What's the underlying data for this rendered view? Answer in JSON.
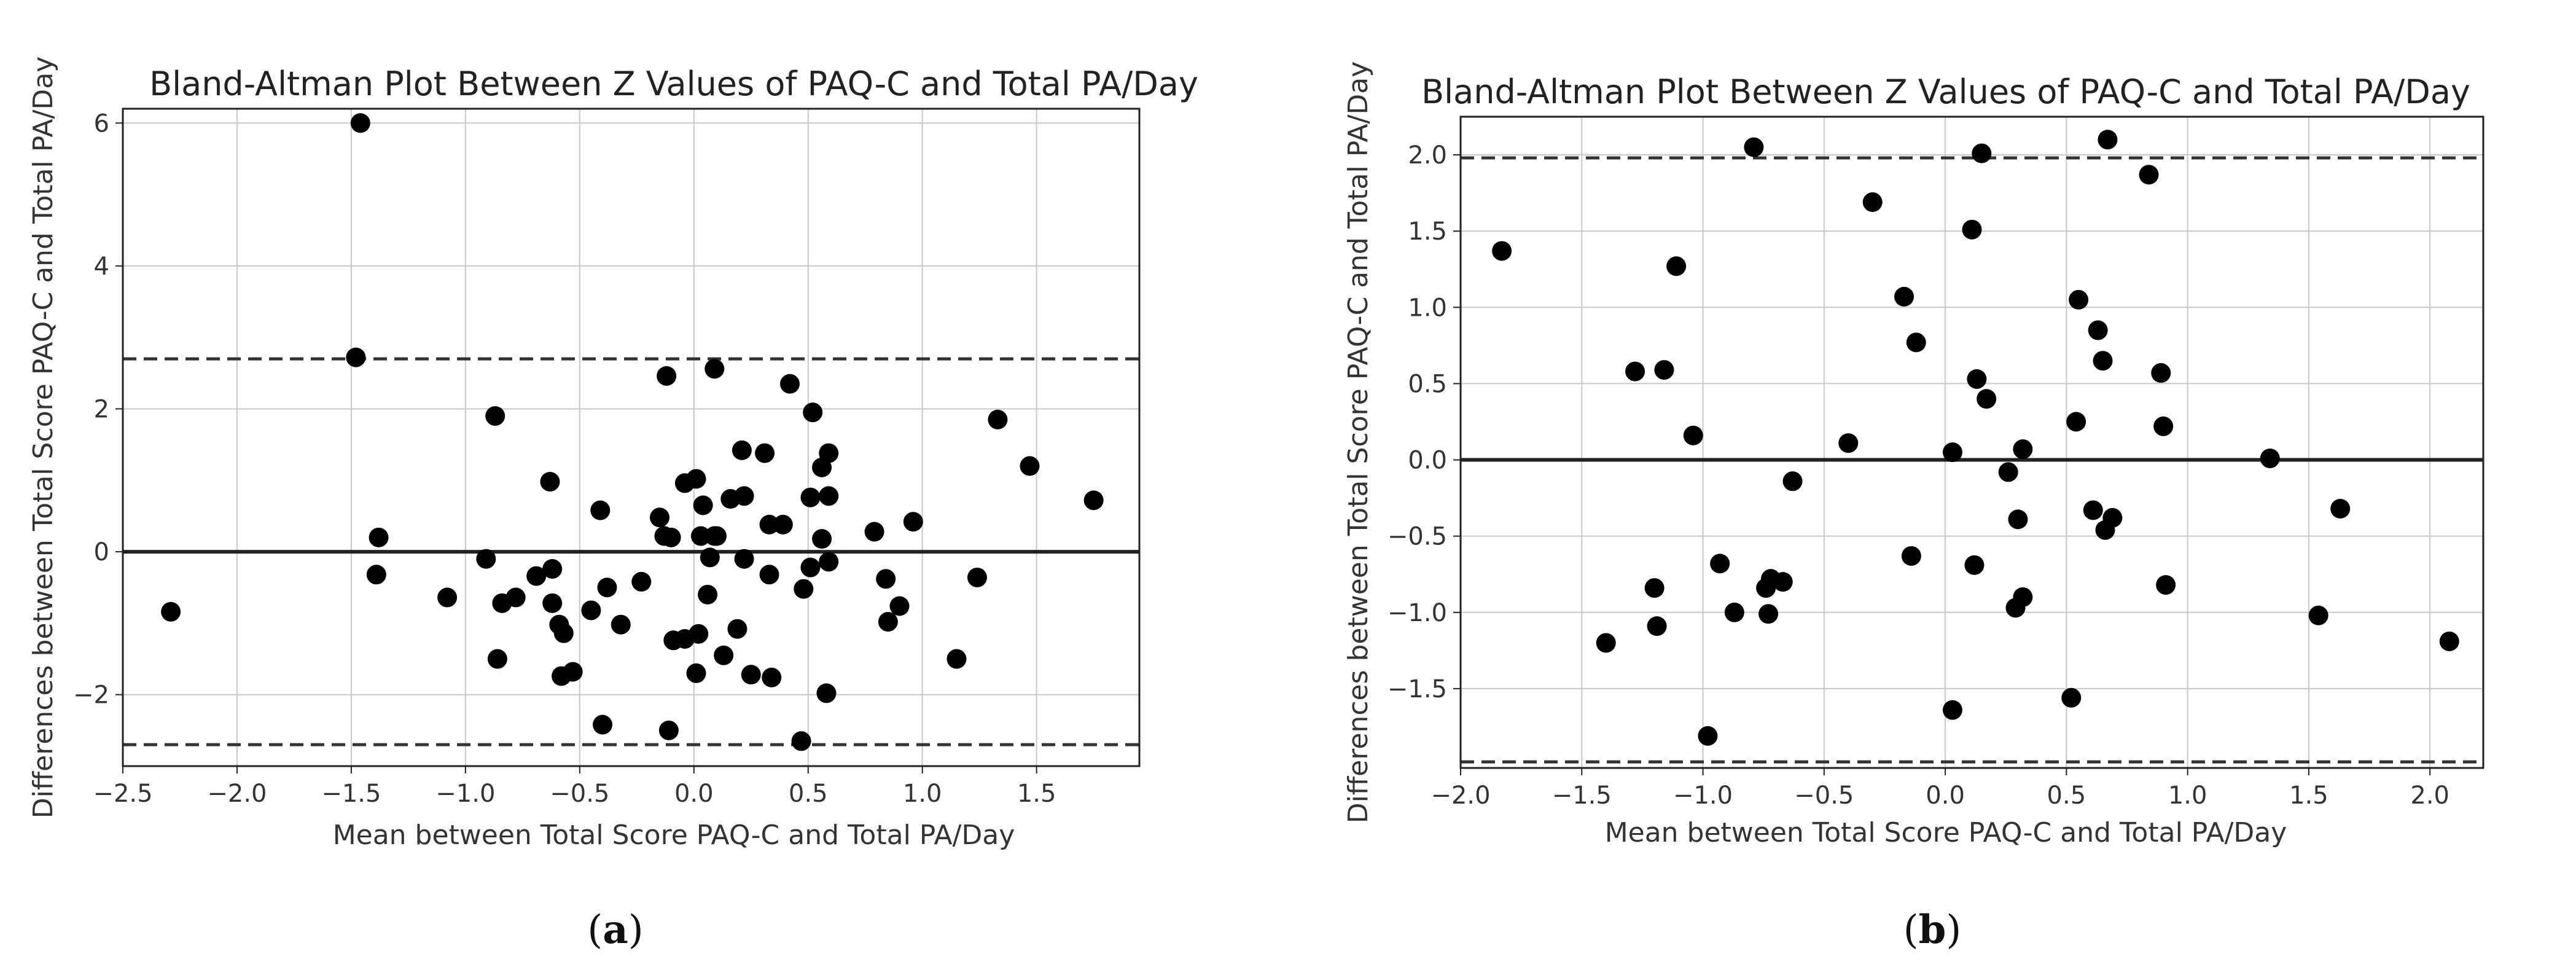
{
  "chart_data": [
    {
      "type": "scatter",
      "panel_label": "(a)",
      "panel_letter": "a",
      "title": "Bland-Altman Plot Between Z Values of PAQ-C and Total PA/Day",
      "xlabel": "Mean between Total Score PAQ-C and Total PA/Day",
      "ylabel": "Differences between Total Score PAQ-C and Total PA/Day",
      "xlim": [
        -2.5,
        1.95
      ],
      "ylim": [
        -3.0,
        6.2
      ],
      "xticks": [
        -2.5,
        -2.0,
        -1.5,
        -1.0,
        -0.5,
        0.0,
        0.5,
        1.0,
        1.5
      ],
      "xtick_labels": [
        "−2.5",
        "−2.0",
        "−1.5",
        "−1.0",
        "−0.5",
        "0.0",
        "0.5",
        "1.0",
        "1.5"
      ],
      "yticks": [
        -2,
        0,
        2,
        4,
        6
      ],
      "ytick_labels": [
        "−2",
        "0",
        "2",
        "4",
        "6"
      ],
      "grid": true,
      "mean_line": 0.0,
      "upper_loa": 2.7,
      "lower_loa": -2.7,
      "points": [
        [
          -2.29,
          -0.84
        ],
        [
          -1.46,
          6.0
        ],
        [
          -1.48,
          2.72
        ],
        [
          -1.38,
          0.2
        ],
        [
          -1.39,
          -0.32
        ],
        [
          -1.08,
          -0.64
        ],
        [
          -0.91,
          -0.1
        ],
        [
          -0.87,
          1.9
        ],
        [
          -0.86,
          -1.5
        ],
        [
          -0.84,
          -0.72
        ],
        [
          -0.78,
          -0.64
        ],
        [
          -0.69,
          -0.34
        ],
        [
          -0.63,
          0.98
        ],
        [
          -0.62,
          -0.24
        ],
        [
          -0.62,
          -0.72
        ],
        [
          -0.59,
          -1.02
        ],
        [
          -0.57,
          -1.14
        ],
        [
          -0.58,
          -1.74
        ],
        [
          -0.53,
          -1.68
        ],
        [
          -0.45,
          -0.82
        ],
        [
          -0.41,
          0.58
        ],
        [
          -0.4,
          -2.42
        ],
        [
          -0.38,
          -0.5
        ],
        [
          -0.32,
          -1.02
        ],
        [
          -0.23,
          -0.42
        ],
        [
          -0.15,
          0.48
        ],
        [
          -0.12,
          2.46
        ],
        [
          -0.13,
          0.22
        ],
        [
          -0.1,
          0.2
        ],
        [
          -0.11,
          -2.5
        ],
        [
          -0.09,
          -1.24
        ],
        [
          -0.04,
          0.96
        ],
        [
          -0.04,
          -1.22
        ],
        [
          0.01,
          1.02
        ],
        [
          0.01,
          -1.7
        ],
        [
          0.02,
          -1.15
        ],
        [
          0.03,
          0.22
        ],
        [
          0.04,
          0.65
        ],
        [
          0.06,
          -0.6
        ],
        [
          0.07,
          -0.08
        ],
        [
          0.09,
          2.56
        ],
        [
          0.09,
          0.22
        ],
        [
          0.1,
          0.22
        ],
        [
          0.13,
          -1.45
        ],
        [
          0.16,
          0.74
        ],
        [
          0.19,
          -1.08
        ],
        [
          0.21,
          1.42
        ],
        [
          0.22,
          0.78
        ],
        [
          0.22,
          -0.1
        ],
        [
          0.25,
          -1.72
        ],
        [
          0.31,
          1.38
        ],
        [
          0.33,
          -0.32
        ],
        [
          0.33,
          0.38
        ],
        [
          0.34,
          -1.76
        ],
        [
          0.39,
          0.38
        ],
        [
          0.42,
          2.35
        ],
        [
          0.47,
          -2.65
        ],
        [
          0.48,
          -0.52
        ],
        [
          0.51,
          0.76
        ],
        [
          0.52,
          1.95
        ],
        [
          0.51,
          -0.22
        ],
        [
          0.56,
          0.18
        ],
        [
          0.56,
          1.18
        ],
        [
          0.58,
          -1.98
        ],
        [
          0.59,
          0.78
        ],
        [
          0.59,
          1.38
        ],
        [
          0.59,
          -0.14
        ],
        [
          0.79,
          0.28
        ],
        [
          0.84,
          -0.38
        ],
        [
          0.85,
          -0.98
        ],
        [
          0.9,
          -0.76
        ],
        [
          0.96,
          0.42
        ],
        [
          1.15,
          -1.5
        ],
        [
          1.24,
          -0.36
        ],
        [
          1.33,
          1.85
        ],
        [
          1.47,
          1.2
        ],
        [
          1.75,
          0.72
        ]
      ]
    },
    {
      "type": "scatter",
      "panel_label": "(b)",
      "panel_letter": "b",
      "title": "Bland-Altman Plot Between Z Values of PAQ-C and Total PA/Day",
      "xlabel": "Mean between Total Score PAQ-C and Total PA/Day",
      "ylabel": "Differences between Total Score PAQ-C and Total PA/Day",
      "xlim": [
        -2.0,
        2.22
      ],
      "ylim": [
        -2.02,
        2.25
      ],
      "xticks": [
        -2.0,
        -1.5,
        -1.0,
        -0.5,
        0.0,
        0.5,
        1.0,
        1.5,
        2.0
      ],
      "xtick_labels": [
        "−2.0",
        "−1.5",
        "−1.0",
        "−0.5",
        "0.0",
        "0.5",
        "1.0",
        "1.5",
        "2.0"
      ],
      "yticks": [
        -1.5,
        -1.0,
        -0.5,
        0.0,
        0.5,
        1.0,
        1.5,
        2.0
      ],
      "ytick_labels": [
        "−1.5",
        "−1.0",
        "−0.5",
        "0.0",
        "0.5",
        "1.0",
        "1.5",
        "2.0"
      ],
      "grid": true,
      "mean_line": 0.0,
      "upper_loa": 1.98,
      "lower_loa": -1.98,
      "points": [
        [
          -1.83,
          1.37
        ],
        [
          -1.4,
          -1.2
        ],
        [
          -1.28,
          0.58
        ],
        [
          -1.2,
          -0.84
        ],
        [
          -1.19,
          -1.09
        ],
        [
          -1.16,
          0.59
        ],
        [
          -1.11,
          1.27
        ],
        [
          -1.04,
          0.16
        ],
        [
          -0.98,
          -1.81
        ],
        [
          -0.93,
          -0.68
        ],
        [
          -0.87,
          -1.0
        ],
        [
          -0.79,
          2.05
        ],
        [
          -0.74,
          -0.84
        ],
        [
          -0.73,
          -1.01
        ],
        [
          -0.72,
          -0.78
        ],
        [
          -0.67,
          -0.8
        ],
        [
          -0.63,
          -0.14
        ],
        [
          -0.4,
          0.11
        ],
        [
          -0.3,
          1.69
        ],
        [
          -0.17,
          1.07
        ],
        [
          -0.14,
          -0.63
        ],
        [
          -0.12,
          0.77
        ],
        [
          0.03,
          0.05
        ],
        [
          0.03,
          -1.64
        ],
        [
          0.11,
          1.51
        ],
        [
          0.12,
          -0.69
        ],
        [
          0.13,
          0.53
        ],
        [
          0.15,
          2.01
        ],
        [
          0.17,
          0.4
        ],
        [
          0.26,
          -0.08
        ],
        [
          0.29,
          -0.97
        ],
        [
          0.3,
          -0.39
        ],
        [
          0.32,
          -0.9
        ],
        [
          0.32,
          0.07
        ],
        [
          0.52,
          -1.56
        ],
        [
          0.54,
          0.25
        ],
        [
          0.55,
          1.05
        ],
        [
          0.61,
          -0.33
        ],
        [
          0.63,
          0.85
        ],
        [
          0.65,
          0.65
        ],
        [
          0.66,
          -0.46
        ],
        [
          0.67,
          2.1
        ],
        [
          0.69,
          -0.38
        ],
        [
          0.84,
          1.87
        ],
        [
          0.89,
          0.57
        ],
        [
          0.9,
          0.22
        ],
        [
          0.91,
          -0.82
        ],
        [
          1.34,
          0.01
        ],
        [
          1.54,
          -1.02
        ],
        [
          1.63,
          -0.32
        ],
        [
          2.08,
          -1.19
        ]
      ]
    }
  ]
}
